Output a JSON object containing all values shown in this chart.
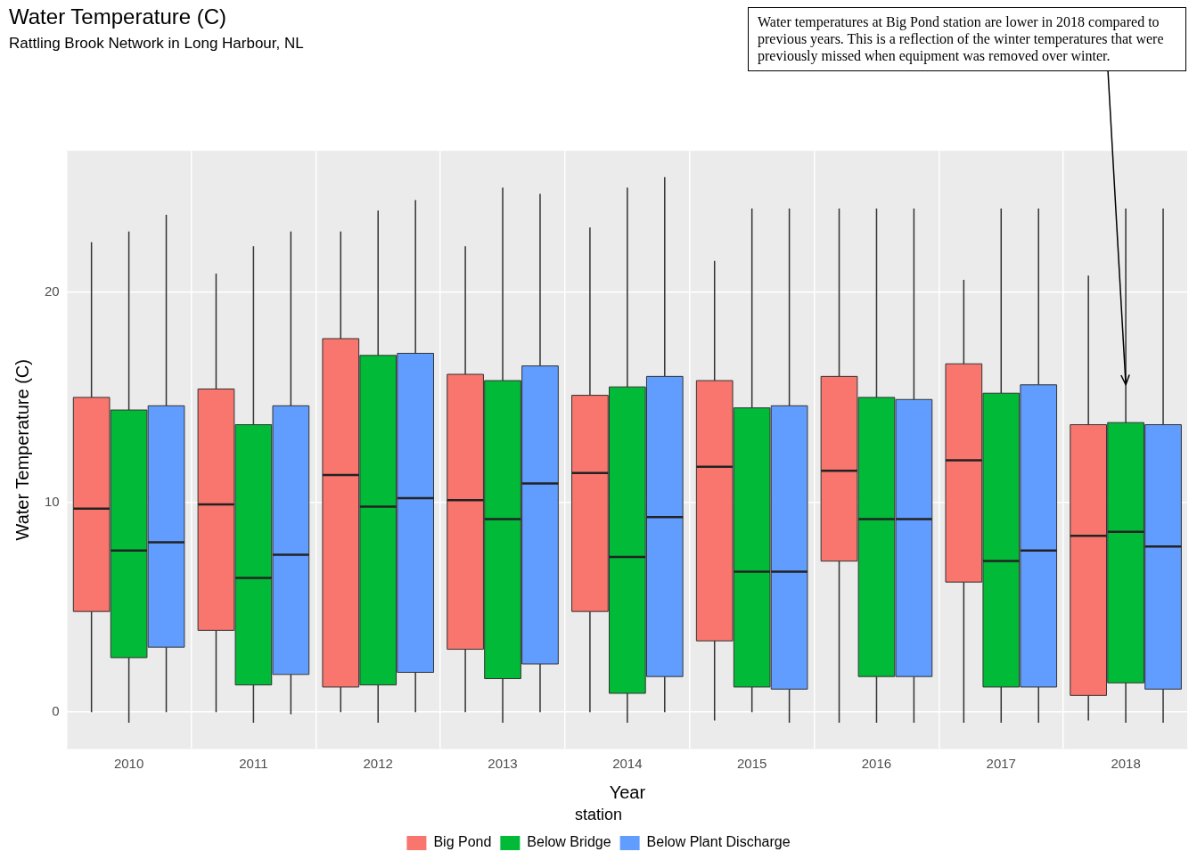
{
  "chart_data": {
    "type": "box",
    "title": "Water Temperature (C)",
    "subtitle": "Rattling Brook Network in Long Harbour, NL",
    "xlabel": "Year",
    "ylabel": "Water Temperature (C)",
    "legend_title": "station",
    "categories": [
      "2010",
      "2011",
      "2012",
      "2013",
      "2014",
      "2015",
      "2016",
      "2017",
      "2018"
    ],
    "ylim": [
      -1.75,
      26.75
    ],
    "yticks": [
      0,
      10,
      20
    ],
    "grid": true,
    "legend": "bottom",
    "series": [
      {
        "name": "Big Pond",
        "color": "#f8766d",
        "boxes": [
          {
            "low": 0,
            "q1": 4.8,
            "median": 9.7,
            "q3": 15.0,
            "high": 22.4
          },
          {
            "low": 0,
            "q1": 3.9,
            "median": 9.9,
            "q3": 15.4,
            "high": 20.9
          },
          {
            "low": 0,
            "q1": 1.2,
            "median": 11.3,
            "q3": 17.8,
            "high": 22.9
          },
          {
            "low": 0,
            "q1": 3.0,
            "median": 10.1,
            "q3": 16.1,
            "high": 22.2
          },
          {
            "low": 0,
            "q1": 4.8,
            "median": 11.4,
            "q3": 15.1,
            "high": 23.1
          },
          {
            "low": -0.4,
            "q1": 3.4,
            "median": 11.7,
            "q3": 15.8,
            "high": 21.5
          },
          {
            "low": -0.5,
            "q1": 7.2,
            "median": 11.5,
            "q3": 16.0,
            "high": 24.0
          },
          {
            "low": -0.5,
            "q1": 6.2,
            "median": 12.0,
            "q3": 16.6,
            "high": 20.6
          },
          {
            "low": -0.4,
            "q1": 0.8,
            "median": 8.4,
            "q3": 13.7,
            "high": 20.8
          }
        ]
      },
      {
        "name": "Below Bridge",
        "color": "#00ba38",
        "boxes": [
          {
            "low": -0.5,
            "q1": 2.6,
            "median": 7.7,
            "q3": 14.4,
            "high": 22.9
          },
          {
            "low": -0.5,
            "q1": 1.3,
            "median": 6.4,
            "q3": 13.7,
            "high": 22.2
          },
          {
            "low": -0.5,
            "q1": 1.3,
            "median": 9.8,
            "q3": 17.0,
            "high": 23.9
          },
          {
            "low": -0.5,
            "q1": 1.6,
            "median": 9.2,
            "q3": 15.8,
            "high": 25.0
          },
          {
            "low": -0.5,
            "q1": 0.9,
            "median": 7.4,
            "q3": 15.5,
            "high": 25.0
          },
          {
            "low": 0,
            "q1": 1.2,
            "median": 6.7,
            "q3": 14.5,
            "high": 24.0
          },
          {
            "low": -0.5,
            "q1": 1.7,
            "median": 9.2,
            "q3": 15.0,
            "high": 24.0
          },
          {
            "low": -0.5,
            "q1": 1.2,
            "median": 7.2,
            "q3": 15.2,
            "high": 24.0
          },
          {
            "low": -0.5,
            "q1": 1.4,
            "median": 8.6,
            "q3": 13.8,
            "high": 24.0
          }
        ]
      },
      {
        "name": "Below Plant Discharge",
        "color": "#619cff",
        "boxes": [
          {
            "low": 0,
            "q1": 3.1,
            "median": 8.1,
            "q3": 14.6,
            "high": 23.7
          },
          {
            "low": -0.1,
            "q1": 1.8,
            "median": 7.5,
            "q3": 14.6,
            "high": 22.9
          },
          {
            "low": 0,
            "q1": 1.9,
            "median": 10.2,
            "q3": 17.1,
            "high": 24.4
          },
          {
            "low": 0,
            "q1": 2.3,
            "median": 10.9,
            "q3": 16.5,
            "high": 24.7
          },
          {
            "low": 0,
            "q1": 1.7,
            "median": 9.3,
            "q3": 16.0,
            "high": 25.5
          },
          {
            "low": -0.5,
            "q1": 1.1,
            "median": 6.7,
            "q3": 14.6,
            "high": 24.0
          },
          {
            "low": -0.5,
            "q1": 1.7,
            "median": 9.2,
            "q3": 14.9,
            "high": 24.0
          },
          {
            "low": -0.5,
            "q1": 1.2,
            "median": 7.7,
            "q3": 15.6,
            "high": 24.0
          },
          {
            "low": -0.5,
            "q1": 1.1,
            "median": 7.9,
            "q3": 13.7,
            "high": 24.0
          }
        ]
      }
    ],
    "annotations": [
      {
        "text": "Water temperatures at Big Pond station are lower in 2018 compared to previous years. This is a reflection of the winter temperatures that were previously missed when equipment was removed over winter.",
        "x": "2018",
        "y": 15.6
      }
    ]
  }
}
